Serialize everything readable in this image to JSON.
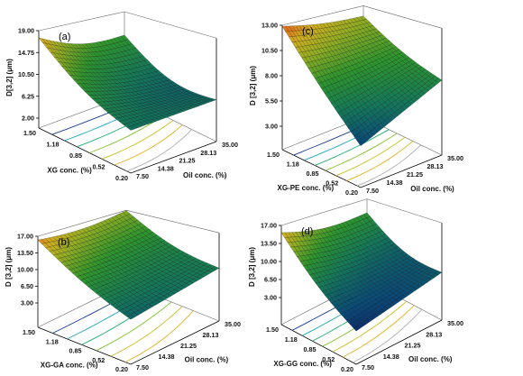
{
  "chart_data": [
    {
      "panel": "(a)",
      "type": "surface",
      "zlabel": "D[3,2] (μm)",
      "xlabel": "XG conc. (%)",
      "ylabel": "Oil conc. (%)",
      "z_ticks": [
        "2.00",
        "6.25",
        "10.50",
        "14.75",
        "19.00"
      ],
      "x_ticks": [
        "1.50",
        "1.18",
        "0.85",
        "0.52",
        "0.20"
      ],
      "y_ticks": [
        "7.50",
        "14.38",
        "21.25",
        "28.13",
        "35.00"
      ],
      "zlim": [
        2.0,
        19.0
      ],
      "xlim": [
        0.2,
        1.5
      ],
      "ylim": [
        7.5,
        35.0
      ],
      "corners": {
        "xmax_ymin": 17.6,
        "xmax_ymax": 12.0,
        "xmin_ymin": 8.4,
        "xmin_ymax": 8.2
      },
      "curvature": 2.4,
      "contours": 7
    },
    {
      "panel": "(c)",
      "type": "surface",
      "zlabel": "D [3,2] (μm)",
      "xlabel": "XG-PE conc. (%)",
      "ylabel": "Oil conc. (%)",
      "z_ticks": [
        "3.00",
        "5.50",
        "8.00",
        "10.50",
        "13.00"
      ],
      "x_ticks": [
        "1.50",
        "1.18",
        "0.85",
        "0.52",
        "0.20"
      ],
      "y_ticks": [
        "7.50",
        "14.38",
        "21.25",
        "28.13",
        "35.00"
      ],
      "zlim": [
        3.0,
        13.0
      ],
      "xlim": [
        0.2,
        1.5
      ],
      "ylim": [
        7.5,
        35.0
      ],
      "corners": {
        "xmax_ymin": 12.9,
        "xmax_ymax": 10.7,
        "xmin_ymin": 4.8,
        "xmin_ymax": 8.1
      },
      "curvature": 0.4,
      "contours": 7
    },
    {
      "panel": "(b)",
      "type": "surface",
      "zlabel": "D [3,2] (μm)",
      "xlabel": "XG-GA conc. (%)",
      "ylabel": "Oil conc. (%)",
      "z_ticks": [
        "3.00",
        "6.50",
        "10.00",
        "13.50",
        "17.00"
      ],
      "x_ticks": [
        "1.50",
        "1.18",
        "0.85",
        "0.52",
        "0.20"
      ],
      "y_ticks": [
        "7.50",
        "14.38",
        "21.25",
        "28.13",
        "35.00"
      ],
      "zlim": [
        3.0,
        17.0
      ],
      "xlim": [
        0.2,
        1.5
      ],
      "ylim": [
        7.5,
        35.0
      ],
      "corners": {
        "xmax_ymin": 16.2,
        "xmax_ymax": 13.3,
        "xmin_ymin": 7.3,
        "xmin_ymax": 9.0
      },
      "curvature": 1.3,
      "contours": 6
    },
    {
      "panel": "(d)",
      "type": "surface",
      "zlabel": "D [3,2] (μm)",
      "xlabel": "XG-GG conc. (%)",
      "ylabel": "Oil conc. (%)",
      "z_ticks": [
        "3.00",
        "6.50",
        "10.00",
        "13.50",
        "17.00"
      ],
      "x_ticks": [
        "1.50",
        "1.18",
        "0.85",
        "0.52",
        "0.20"
      ],
      "y_ticks": [
        "7.50",
        "14.38",
        "21.25",
        "28.13",
        "35.00"
      ],
      "zlim": [
        3.0,
        17.0
      ],
      "xlim": [
        0.2,
        1.5
      ],
      "ylim": [
        7.5,
        35.0
      ],
      "corners": {
        "xmax_ymin": 15.6,
        "xmax_ymax": 10.9,
        "xmin_ymin": 4.2,
        "xmin_ymax": 7.0
      },
      "curvature": 1.8,
      "contours": 7
    }
  ]
}
